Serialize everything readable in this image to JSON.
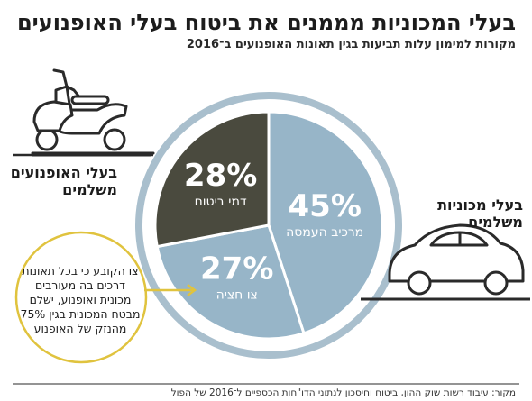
{
  "title": "בעלי המכוניות מממנים את ביטוח בעלי האופנועים",
  "subtitle": "מקורות למימון עלות תביעות בגין תאונות האופנועים ב־2016",
  "motorcycle_label": [
    "בעלי האופנועים",
    "משלמים"
  ],
  "car_label": [
    "בעלי מכוניות",
    "משלמים"
  ],
  "note_text": "צו הקובע כי בכל תאונות דרכים בה מעורבים מכונית ואופנוע, ישלם מבטח המכונית בגין 75% מהנזק של האופנוע",
  "source_text": "מקור: עיבוד רשות שוק ההון, ביטוח וחיסכון לנתוני הדו\"חות הכספיים ל־2016 של הפול",
  "colors": {
    "premiums": "#4a4a3e",
    "car_share": "#97b5c8",
    "ring": "#a9bfcd",
    "note_circle": "#e0c33e",
    "vehicle_fill": "#ffffff",
    "vehicle_stroke": "#2a2a2a"
  },
  "chart_data": {
    "type": "pie",
    "title": "מקורות למימון עלות תביעות בגין תאונות האופנועים ב־2016",
    "slices": [
      {
        "label": "מרכיב העמסה",
        "value": 45,
        "display": "45%",
        "color": "#97b5c8"
      },
      {
        "label": "צו חציה",
        "value": 27,
        "display": "27%",
        "color": "#97b5c8"
      },
      {
        "label": "דמי ביטוח",
        "value": 28,
        "display": "28%",
        "color": "#4a4a3e"
      }
    ],
    "start_angle_deg": 0,
    "direction": "clockwise"
  }
}
